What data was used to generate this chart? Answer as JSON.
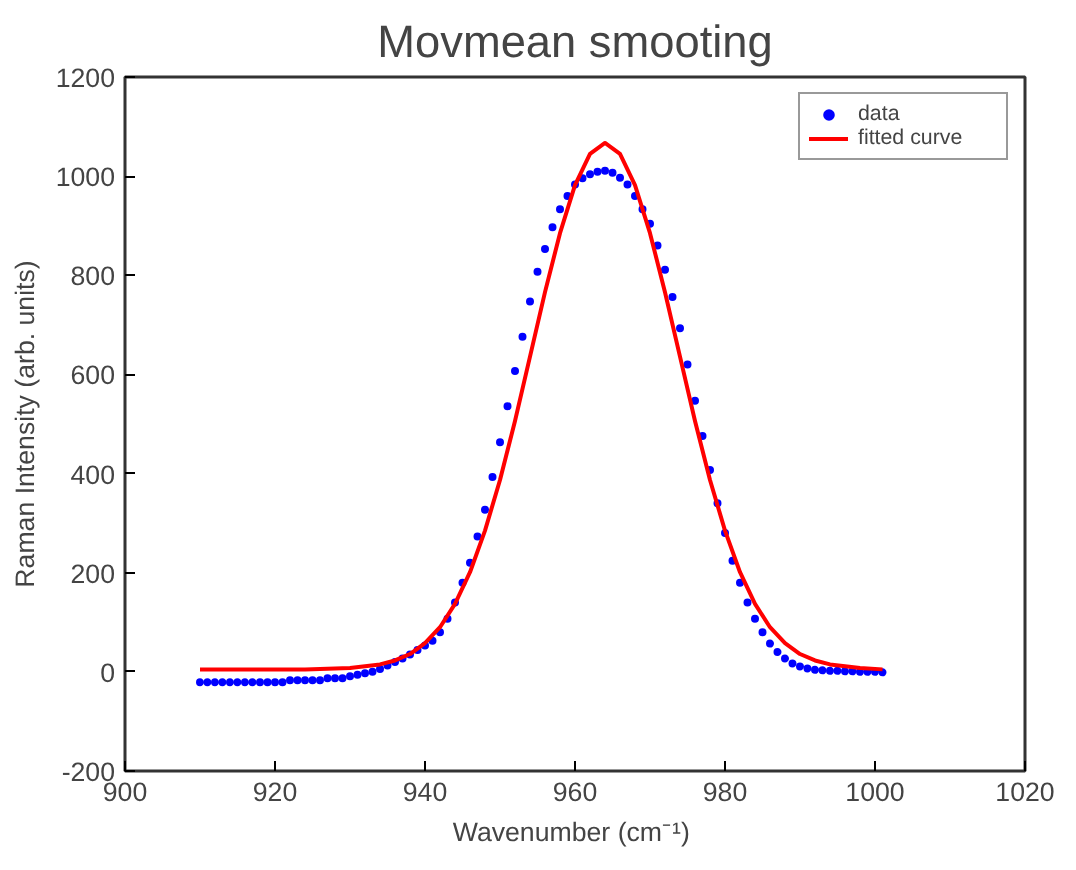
{
  "chart_data": {
    "type": "scatter",
    "title": "Movmean smooting",
    "xlabel": "Wavenumber  (cm⁻¹)",
    "ylabel": "Raman Intensity (arb. units)",
    "xlim": [
      900,
      1020
    ],
    "xticks": [
      900,
      920,
      940,
      960,
      980,
      1000,
      1020
    ],
    "ylim": [
      -200,
      1200
    ],
    "yticks": [
      -200,
      0,
      200,
      400,
      600,
      800,
      1000,
      1200
    ],
    "grid": false,
    "legend": "top right",
    "series": [
      {
        "name": "data",
        "marker": "circle",
        "color": "#0000ff",
        "x": [
          910,
          911,
          912,
          913,
          914,
          915,
          916,
          917,
          918,
          919,
          920,
          921,
          922,
          923,
          924,
          925,
          926,
          927,
          928,
          929,
          930,
          931,
          932,
          933,
          934,
          935,
          936,
          937,
          938,
          939,
          940,
          941,
          942,
          943,
          944,
          945,
          946,
          947,
          948,
          949,
          950,
          951,
          952,
          953,
          954,
          955,
          956,
          957,
          958,
          959,
          960,
          961,
          962,
          963,
          964,
          965,
          966,
          967,
          968,
          969,
          970,
          971,
          972,
          973,
          974,
          975,
          976,
          977,
          978,
          979,
          980,
          981,
          982,
          983,
          984,
          985,
          986,
          987,
          988,
          989,
          990,
          991,
          992,
          993,
          994,
          995,
          996,
          997,
          998,
          999,
          1000,
          1001
        ],
        "values": [
          -21,
          -21,
          -21,
          -21,
          -21,
          -21,
          -21,
          -21,
          -21,
          -21,
          -21,
          -21,
          -17,
          -17,
          -17,
          -17,
          -17,
          -13,
          -13,
          -13,
          -9,
          -6,
          -3,
          0,
          6,
          13,
          20,
          27,
          35,
          44,
          53,
          63,
          80,
          107,
          140,
          180,
          220,
          273,
          327,
          393,
          463,
          536,
          607,
          676,
          747,
          807,
          853,
          897,
          933,
          960,
          983,
          996,
          1004,
          1009,
          1011,
          1007,
          997,
          983,
          960,
          933,
          904,
          860,
          811,
          756,
          693,
          620,
          547,
          476,
          407,
          340,
          280,
          224,
          180,
          140,
          107,
          80,
          57,
          40,
          27,
          17,
          11,
          7,
          4,
          3,
          2,
          2,
          1,
          1,
          0,
          0,
          0,
          -1
        ]
      },
      {
        "name": "fitted curve",
        "type": "line",
        "marker": "none",
        "line_style": "solid",
        "color": "#ff0000",
        "x": [
          910,
          920,
          924,
          930,
          934,
          936,
          938,
          940,
          942,
          944,
          946,
          948,
          950,
          952,
          954,
          956,
          958,
          960,
          962,
          964,
          966,
          968,
          970,
          972,
          974,
          976,
          978,
          980,
          982,
          984,
          986,
          988,
          990,
          992,
          994,
          998,
          1001
        ],
        "values": [
          5,
          5,
          5,
          8,
          15,
          23,
          36,
          58,
          90,
          137,
          201,
          285,
          387,
          506,
          636,
          766,
          885,
          982,
          1045,
          1067,
          1045,
          982,
          885,
          766,
          636,
          506,
          387,
          285,
          201,
          137,
          90,
          58,
          36,
          23,
          15,
          8,
          5
        ]
      }
    ]
  }
}
